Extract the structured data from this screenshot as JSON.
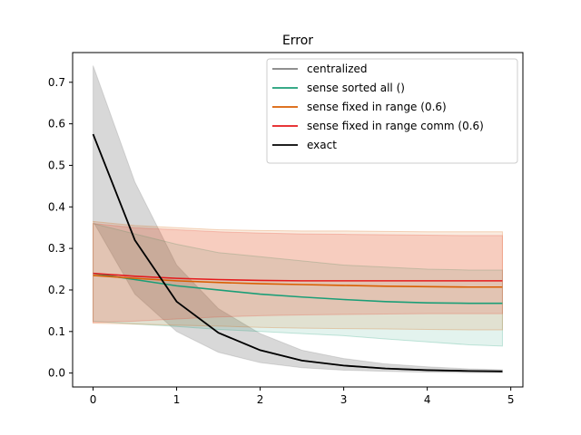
{
  "chart_data": {
    "type": "line",
    "title": "Error",
    "xlabel": "",
    "ylabel": "",
    "xlim": [
      -0.245,
      5.145
    ],
    "ylim": [
      -0.0335,
      0.7715
    ],
    "xticks": [
      0,
      1,
      2,
      3,
      4,
      5
    ],
    "xtick_labels": [
      "0",
      "1",
      "2",
      "3",
      "4",
      "5"
    ],
    "yticks": [
      0.0,
      0.1,
      0.2,
      0.3,
      0.4,
      0.5,
      0.6,
      0.7
    ],
    "ytick_labels": [
      "0.0",
      "0.1",
      "0.2",
      "0.3",
      "0.4",
      "0.5",
      "0.6",
      "0.7"
    ],
    "grid": false,
    "legend_position": "top-right",
    "x": [
      0,
      0.5,
      1,
      1.5,
      2,
      2.5,
      3,
      3.5,
      4,
      4.5,
      4.9
    ],
    "series": [
      {
        "name": "centralized",
        "color": "#7f7f7f",
        "band_color": "#7f7f7f",
        "band_opacity": 0.3,
        "values": [
          0.575,
          0.32,
          0.172,
          0.097,
          0.055,
          0.03,
          0.018,
          0.011,
          0.007,
          0.005,
          0.004
        ],
        "lower": [
          0.365,
          0.19,
          0.1,
          0.05,
          0.025,
          0.013,
          0.007,
          0.004,
          0.002,
          0.001,
          0.001
        ],
        "upper": [
          0.74,
          0.46,
          0.26,
          0.155,
          0.095,
          0.055,
          0.035,
          0.022,
          0.015,
          0.01,
          0.008
        ]
      },
      {
        "name": "sense sorted all ()",
        "color": "#1b9e77",
        "band_color": "#1b9e77",
        "band_opacity": 0.12,
        "values": [
          0.24,
          0.225,
          0.21,
          0.2,
          0.19,
          0.183,
          0.177,
          0.172,
          0.169,
          0.168,
          0.168
        ],
        "lower": [
          0.125,
          0.118,
          0.112,
          0.105,
          0.1,
          0.095,
          0.09,
          0.082,
          0.075,
          0.068,
          0.065
        ],
        "upper": [
          0.36,
          0.335,
          0.31,
          0.29,
          0.28,
          0.27,
          0.26,
          0.255,
          0.25,
          0.248,
          0.248
        ]
      },
      {
        "name": "sense fixed in range (0.6)",
        "color": "#d95f02",
        "band_color": "#d95f02",
        "band_opacity": 0.12,
        "values": [
          0.235,
          0.228,
          0.222,
          0.218,
          0.215,
          0.213,
          0.211,
          0.209,
          0.208,
          0.207,
          0.207
        ],
        "lower": [
          0.12,
          0.118,
          0.115,
          0.113,
          0.11,
          0.108,
          0.107,
          0.106,
          0.105,
          0.104,
          0.104
        ],
        "upper": [
          0.365,
          0.355,
          0.35,
          0.345,
          0.343,
          0.342,
          0.342,
          0.341,
          0.34,
          0.34,
          0.34
        ]
      },
      {
        "name": "sense fixed in range comm (0.6)",
        "color": "#e41a1c",
        "band_color": "#e8422e",
        "band_opacity": 0.18,
        "values": [
          0.24,
          0.233,
          0.228,
          0.225,
          0.223,
          0.222,
          0.222,
          0.222,
          0.222,
          0.222,
          0.222
        ],
        "lower": [
          0.122,
          0.125,
          0.13,
          0.135,
          0.138,
          0.14,
          0.141,
          0.142,
          0.143,
          0.143,
          0.143
        ],
        "upper": [
          0.36,
          0.35,
          0.345,
          0.34,
          0.337,
          0.335,
          0.334,
          0.333,
          0.332,
          0.331,
          0.331
        ]
      },
      {
        "name": "exact",
        "color": "#000000",
        "values": [
          0.575,
          0.32,
          0.172,
          0.097,
          0.055,
          0.03,
          0.018,
          0.011,
          0.007,
          0.005,
          0.004
        ]
      }
    ]
  }
}
